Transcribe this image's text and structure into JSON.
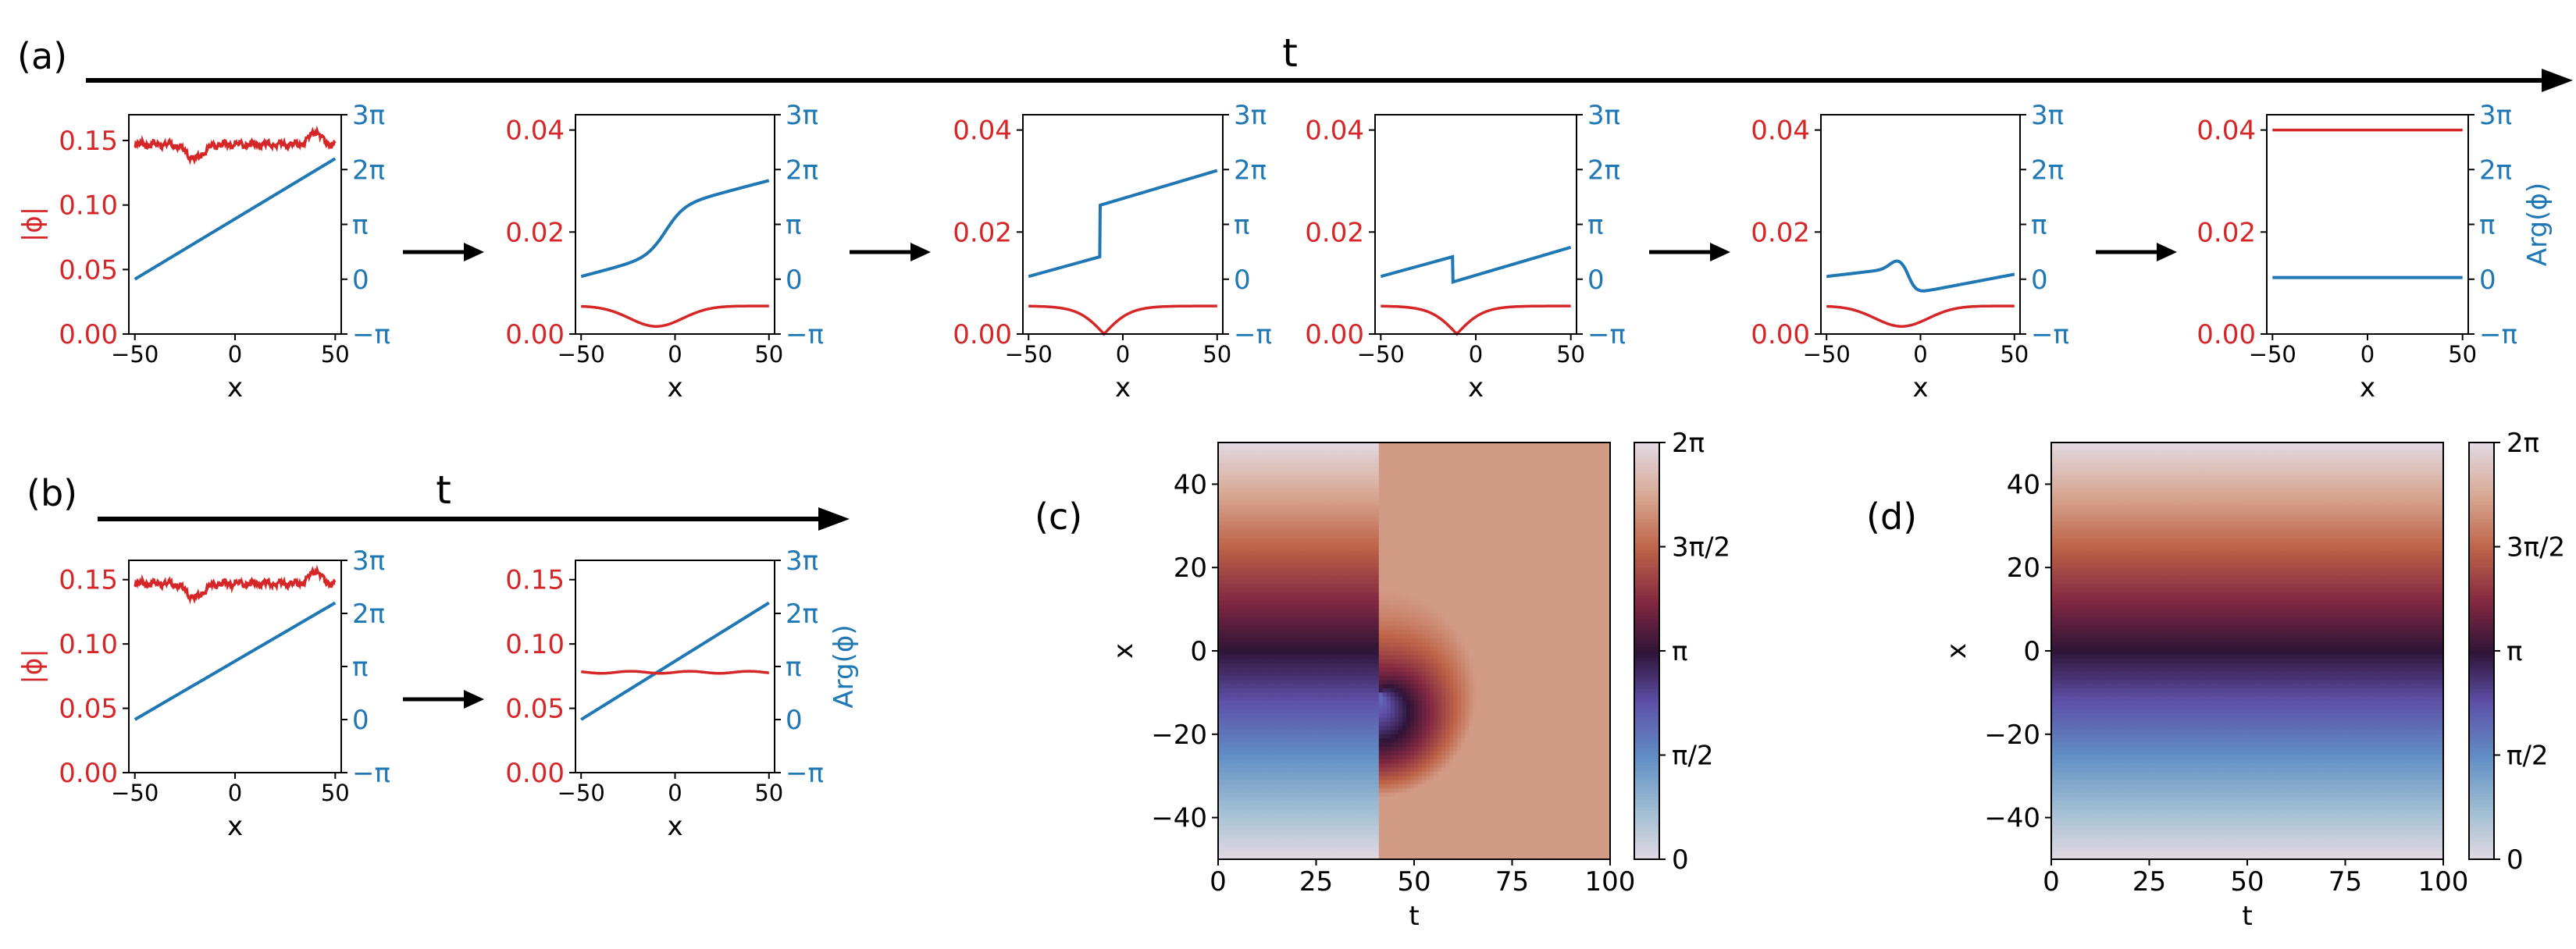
{
  "colors": {
    "amp": "#d62728",
    "phase": "#1f77b4",
    "axis": "#000000"
  },
  "chart_data": {
    "panel_a": {
      "label": "(a)",
      "arrow_label": "t",
      "snapshots": [
        {
          "ylim": [
            0,
            0.17
          ],
          "yticks": [
            "0.00",
            "0.05",
            "0.10",
            "0.15"
          ],
          "ytick_values": [
            0,
            0.05,
            0.1,
            0.15
          ],
          "amp_kind": "noise",
          "phase_kind": "linear",
          "show_left_label": true,
          "show_right_label": false
        },
        {
          "ylim": [
            0,
            0.043
          ],
          "yticks": [
            "0.00",
            "0.02",
            "0.04"
          ],
          "ytick_values": [
            0,
            0.02,
            0.04
          ],
          "amp_kind": "dip",
          "phase_kind": "smooth",
          "show_left_label": false,
          "show_right_label": false
        },
        {
          "ylim": [
            0,
            0.043
          ],
          "yticks": [
            "0.00",
            "0.02",
            "0.04"
          ],
          "ytick_values": [
            0,
            0.02,
            0.04
          ],
          "amp_kind": "vdip",
          "phase_kind": "jumpup",
          "show_left_label": false,
          "show_right_label": false
        },
        {
          "ylim": [
            0,
            0.043
          ],
          "yticks": [
            "0.00",
            "0.02",
            "0.04"
          ],
          "ytick_values": [
            0,
            0.02,
            0.04
          ],
          "amp_kind": "vdip",
          "phase_kind": "jumpdown",
          "show_left_label": false,
          "show_right_label": false
        },
        {
          "ylim": [
            0,
            0.043
          ],
          "yticks": [
            "0.00",
            "0.02",
            "0.04"
          ],
          "ytick_values": [
            0,
            0.02,
            0.04
          ],
          "amp_kind": "dip",
          "phase_kind": "dipsmooth",
          "show_left_label": false,
          "show_right_label": false
        },
        {
          "ylim": [
            0,
            0.043
          ],
          "yticks": [
            "0.00",
            "0.02",
            "0.04"
          ],
          "ytick_values": [
            0,
            0.02,
            0.04
          ],
          "amp_kind": "flat04",
          "phase_kind": "zero",
          "show_left_label": false,
          "show_right_label": true
        }
      ]
    },
    "panel_b": {
      "label": "(b)",
      "arrow_label": "t",
      "snapshots": [
        {
          "ylim": [
            0,
            0.165
          ],
          "yticks": [
            "0.00",
            "0.05",
            "0.10",
            "0.15"
          ],
          "ytick_values": [
            0,
            0.05,
            0.1,
            0.15
          ],
          "amp_kind": "noise",
          "phase_kind": "linear",
          "show_left_label": true,
          "show_right_label": false
        },
        {
          "ylim": [
            0,
            0.165
          ],
          "yticks": [
            "0.00",
            "0.05",
            "0.10",
            "0.15"
          ],
          "ytick_values": [
            0,
            0.05,
            0.1,
            0.15
          ],
          "amp_kind": "flat078",
          "phase_kind": "linear",
          "show_left_label": false,
          "show_right_label": true
        }
      ]
    },
    "line_axes": {
      "xlim": [
        -53,
        53
      ],
      "xticks": [
        "−50",
        "0",
        "50"
      ],
      "xtick_values": [
        -50,
        0,
        50
      ],
      "xlabel": "x",
      "ylabel_left": "|ϕ|",
      "ylabel_right": "Arg(ϕ)",
      "phase_ylim": [
        -1,
        3
      ],
      "phase_ticks": [
        "3π",
        "2π",
        "π",
        "0",
        "−π"
      ],
      "phase_tick_values": [
        3,
        2,
        1,
        0,
        -1
      ]
    },
    "heatmaps": [
      {
        "label": "(c)",
        "type": "heatmap",
        "kind": "vortex",
        "xlabel": "t",
        "ylabel": "x",
        "xlim": [
          0,
          100
        ],
        "ylim": [
          -50,
          50
        ],
        "xticks": [
          "0",
          "25",
          "50",
          "75",
          "100"
        ],
        "xtick_values": [
          0,
          25,
          50,
          75,
          100
        ],
        "yticks": [
          "40",
          "20",
          "0",
          "−20",
          "−40"
        ],
        "ytick_values": [
          40,
          20,
          0,
          -20,
          -40
        ],
        "vortex_center": {
          "t": 41,
          "x": -10
        },
        "colorbar": {
          "range": [
            0,
            6.283
          ],
          "ticks": [
            "2π",
            "3π/2",
            "π",
            "π/2",
            "0"
          ],
          "tick_values": [
            6.283,
            4.712,
            3.1416,
            1.5708,
            0
          ]
        }
      },
      {
        "label": "(d)",
        "type": "heatmap",
        "kind": "linear",
        "xlabel": "t",
        "ylabel": "x",
        "xlim": [
          0,
          100
        ],
        "ylim": [
          -50,
          50
        ],
        "xticks": [
          "0",
          "25",
          "50",
          "75",
          "100"
        ],
        "xtick_values": [
          0,
          25,
          50,
          75,
          100
        ],
        "yticks": [
          "40",
          "20",
          "0",
          "−20",
          "−40"
        ],
        "ytick_values": [
          40,
          20,
          0,
          -20,
          -40
        ],
        "colorbar": {
          "range": [
            0,
            6.283
          ],
          "ticks": [
            "2π",
            "3π/2",
            "π",
            "π/2",
            "0"
          ],
          "tick_values": [
            6.283,
            4.712,
            3.1416,
            1.5708,
            0
          ]
        }
      }
    ]
  }
}
